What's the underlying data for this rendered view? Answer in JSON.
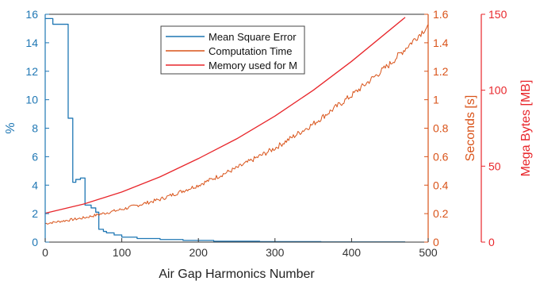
{
  "chart_data": {
    "type": "line",
    "title": "",
    "xlabel": "Air Gap Harmonics Number",
    "xlim": [
      0,
      500
    ],
    "x_ticks": [
      "0",
      "100",
      "200",
      "300",
      "400",
      "500"
    ],
    "legend_position": "top-center",
    "grid": false,
    "y_axes": [
      {
        "id": "left",
        "label": "%",
        "lim": [
          0,
          16
        ],
        "ticks": [
          "0",
          "2",
          "4",
          "6",
          "8",
          "10",
          "12",
          "14",
          "16"
        ],
        "color": "#1f77b4"
      },
      {
        "id": "right1",
        "label": "Seconds [s]",
        "lim": [
          0,
          1.6
        ],
        "ticks": [
          "0",
          "0.2",
          "0.4",
          "0.6",
          "0.8",
          "1",
          "1.2",
          "1.4",
          "1.6"
        ],
        "color": "#d95319"
      },
      {
        "id": "right2",
        "label": "Mega Bytes [MB]",
        "lim": [
          0,
          150
        ],
        "ticks": [
          "0",
          "50",
          "100",
          "150"
        ],
        "color": "#e8262b"
      }
    ],
    "series": [
      {
        "name": "Mean Square Error",
        "axis": "left",
        "color": "#1f77b4",
        "step": true,
        "x": [
          0,
          10,
          10,
          30,
          30,
          36,
          36,
          40,
          40,
          46,
          46,
          52,
          52,
          60,
          60,
          66,
          66,
          70,
          70,
          76,
          76,
          80,
          80,
          90,
          90,
          100,
          100,
          120,
          120,
          150,
          150,
          180,
          180,
          220,
          220,
          280,
          280,
          360,
          360,
          470
        ],
        "y": [
          15.7,
          15.7,
          15.3,
          15.3,
          8.7,
          8.7,
          4.2,
          4.2,
          4.4,
          4.4,
          4.5,
          4.5,
          2.6,
          2.6,
          2.4,
          2.4,
          2.1,
          2.1,
          0.9,
          0.9,
          0.75,
          0.75,
          0.65,
          0.65,
          0.5,
          0.5,
          0.35,
          0.35,
          0.25,
          0.25,
          0.18,
          0.18,
          0.12,
          0.12,
          0.06,
          0.06,
          0.03,
          0.03,
          0.01,
          0.01
        ]
      },
      {
        "name": "Computation Time",
        "axis": "right1",
        "color": "#d95319",
        "noisy": true,
        "x": [
          0,
          50,
          100,
          150,
          200,
          250,
          300,
          350,
          400,
          450,
          500
        ],
        "y": [
          0.13,
          0.17,
          0.23,
          0.3,
          0.4,
          0.52,
          0.66,
          0.83,
          1.03,
          1.25,
          1.52
        ]
      },
      {
        "name": "Memory used for M",
        "axis": "right2",
        "color": "#e8262b",
        "x": [
          0,
          50,
          100,
          150,
          200,
          250,
          300,
          350,
          400,
          470
        ],
        "y": [
          19,
          25,
          33,
          43,
          55,
          68,
          83,
          100,
          119,
          148
        ]
      }
    ]
  }
}
